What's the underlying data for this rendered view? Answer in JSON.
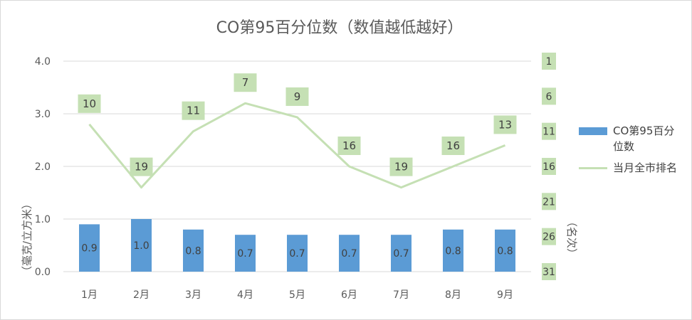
{
  "chart_data": {
    "type": "bar",
    "title": "CO第95百分位数（数值越低越好）",
    "categories": [
      "1月",
      "2月",
      "3月",
      "4月",
      "5月",
      "6月",
      "7月",
      "8月",
      "9月"
    ],
    "series": [
      {
        "name": "CO第95百分位数",
        "type": "bar",
        "axis": "left",
        "values": [
          0.9,
          1.0,
          0.8,
          0.7,
          0.7,
          0.7,
          0.7,
          0.8,
          0.8
        ],
        "labels": [
          "0.9",
          "1.0",
          "0.8",
          "0.7",
          "0.7",
          "0.7",
          "0.7",
          "0.8",
          "0.8"
        ],
        "color": "#5b9bd5"
      },
      {
        "name": "当月全市排名",
        "type": "line",
        "axis": "right",
        "values": [
          10,
          19,
          11,
          7,
          9,
          16,
          19,
          16,
          13
        ],
        "labels": [
          "10",
          "19",
          "11",
          "7",
          "9",
          "16",
          "19",
          "16",
          "13"
        ],
        "color": "#c5e0b4"
      }
    ],
    "ylabel": "（毫克/立方米）",
    "y2label": "（名次）",
    "ylim": [
      0,
      4
    ],
    "yticks": [
      "0.0",
      "1.0",
      "2.0",
      "3.0",
      "4.0"
    ],
    "y2lim": [
      31,
      1
    ],
    "y2ticks": [
      "1",
      "6",
      "11",
      "16",
      "21",
      "26",
      "31"
    ],
    "y2_reversed": true,
    "gridlines": true,
    "legend_position": "right"
  },
  "colors": {
    "bar": "#5b9bd5",
    "line": "#c5e0b4",
    "label_box": "#c5e0b4",
    "grid": "#d9d9d9",
    "text": "#595959"
  }
}
